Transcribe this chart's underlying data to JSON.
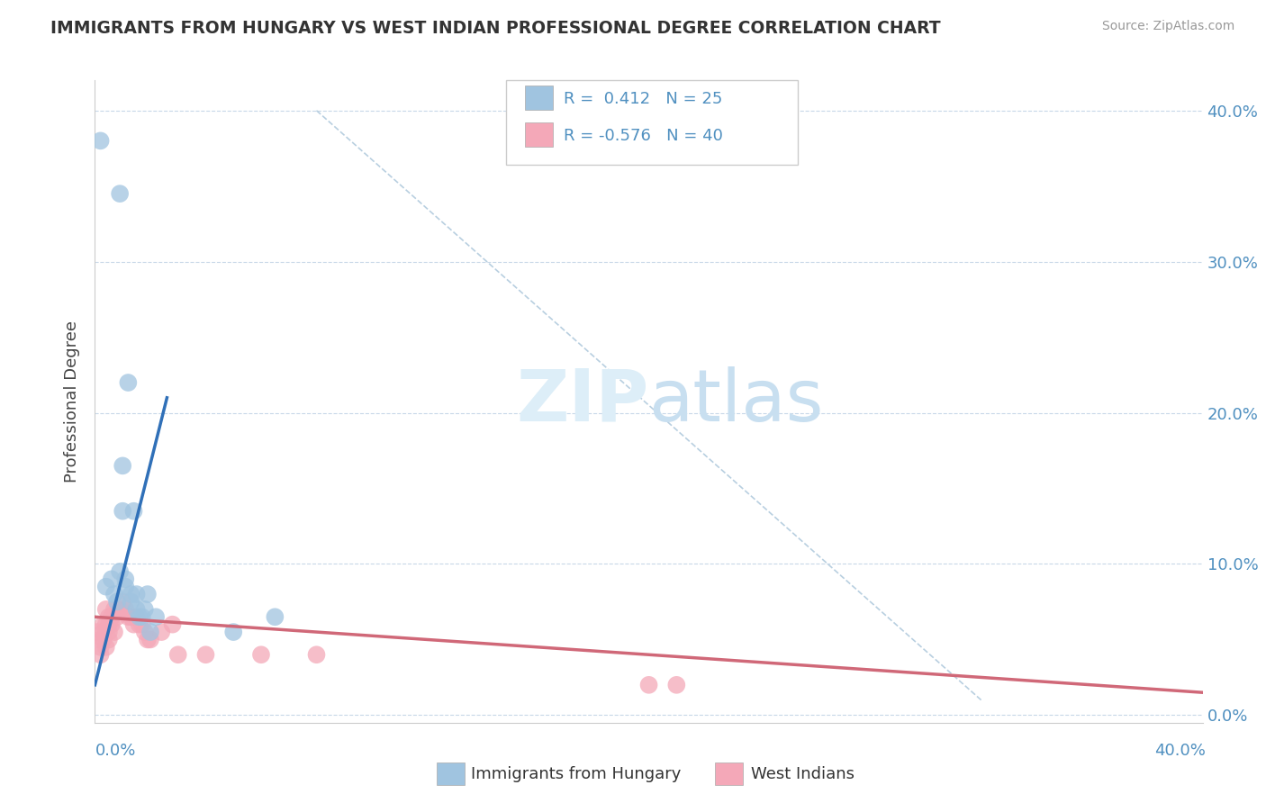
{
  "title": "IMMIGRANTS FROM HUNGARY VS WEST INDIAN PROFESSIONAL DEGREE CORRELATION CHART",
  "source": "Source: ZipAtlas.com",
  "ylabel": "Professional Degree",
  "ytick_values": [
    0.0,
    0.1,
    0.2,
    0.3,
    0.4
  ],
  "xlim": [
    0.0,
    0.4
  ],
  "ylim": [
    -0.005,
    0.42
  ],
  "legend_blue_R": "0.412",
  "legend_blue_N": "25",
  "legend_pink_R": "-0.576",
  "legend_pink_N": "40",
  "background_color": "#ffffff",
  "plot_bg_color": "#ffffff",
  "grid_color": "#c8d8e8",
  "blue_color": "#a0c4e0",
  "pink_color": "#f4a8b8",
  "blue_line_color": "#3070b8",
  "pink_line_color": "#d06878",
  "blue_scatter": [
    [
      0.004,
      0.085
    ],
    [
      0.006,
      0.09
    ],
    [
      0.007,
      0.08
    ],
    [
      0.008,
      0.075
    ],
    [
      0.009,
      0.095
    ],
    [
      0.01,
      0.165
    ],
    [
      0.01,
      0.135
    ],
    [
      0.011,
      0.085
    ],
    [
      0.011,
      0.09
    ],
    [
      0.012,
      0.22
    ],
    [
      0.013,
      0.08
    ],
    [
      0.013,
      0.075
    ],
    [
      0.014,
      0.135
    ],
    [
      0.015,
      0.07
    ],
    [
      0.015,
      0.08
    ],
    [
      0.016,
      0.065
    ],
    [
      0.017,
      0.065
    ],
    [
      0.018,
      0.07
    ],
    [
      0.019,
      0.08
    ],
    [
      0.02,
      0.055
    ],
    [
      0.022,
      0.065
    ],
    [
      0.05,
      0.055
    ],
    [
      0.065,
      0.065
    ],
    [
      0.009,
      0.345
    ],
    [
      0.002,
      0.38
    ]
  ],
  "pink_scatter": [
    [
      0.001,
      0.055
    ],
    [
      0.002,
      0.045
    ],
    [
      0.002,
      0.04
    ],
    [
      0.002,
      0.05
    ],
    [
      0.003,
      0.055
    ],
    [
      0.003,
      0.06
    ],
    [
      0.003,
      0.05
    ],
    [
      0.004,
      0.06
    ],
    [
      0.004,
      0.045
    ],
    [
      0.004,
      0.07
    ],
    [
      0.005,
      0.06
    ],
    [
      0.005,
      0.055
    ],
    [
      0.005,
      0.065
    ],
    [
      0.005,
      0.05
    ],
    [
      0.006,
      0.06
    ],
    [
      0.006,
      0.065
    ],
    [
      0.007,
      0.055
    ],
    [
      0.007,
      0.07
    ],
    [
      0.008,
      0.07
    ],
    [
      0.008,
      0.065
    ],
    [
      0.009,
      0.07
    ],
    [
      0.01,
      0.075
    ],
    [
      0.011,
      0.07
    ],
    [
      0.012,
      0.065
    ],
    [
      0.013,
      0.065
    ],
    [
      0.014,
      0.06
    ],
    [
      0.015,
      0.065
    ],
    [
      0.016,
      0.06
    ],
    [
      0.017,
      0.06
    ],
    [
      0.018,
      0.055
    ],
    [
      0.019,
      0.05
    ],
    [
      0.02,
      0.05
    ],
    [
      0.024,
      0.055
    ],
    [
      0.028,
      0.06
    ],
    [
      0.03,
      0.04
    ],
    [
      0.04,
      0.04
    ],
    [
      0.06,
      0.04
    ],
    [
      0.08,
      0.04
    ],
    [
      0.2,
      0.02
    ],
    [
      0.21,
      0.02
    ]
  ],
  "blue_line_x": [
    0.0,
    0.026
  ],
  "blue_line_y": [
    0.02,
    0.21
  ],
  "pink_line_x": [
    0.0,
    0.4
  ],
  "pink_line_y": [
    0.065,
    0.015
  ],
  "dash_line_x": [
    0.08,
    0.32
  ],
  "dash_line_y": [
    0.4,
    0.01
  ]
}
